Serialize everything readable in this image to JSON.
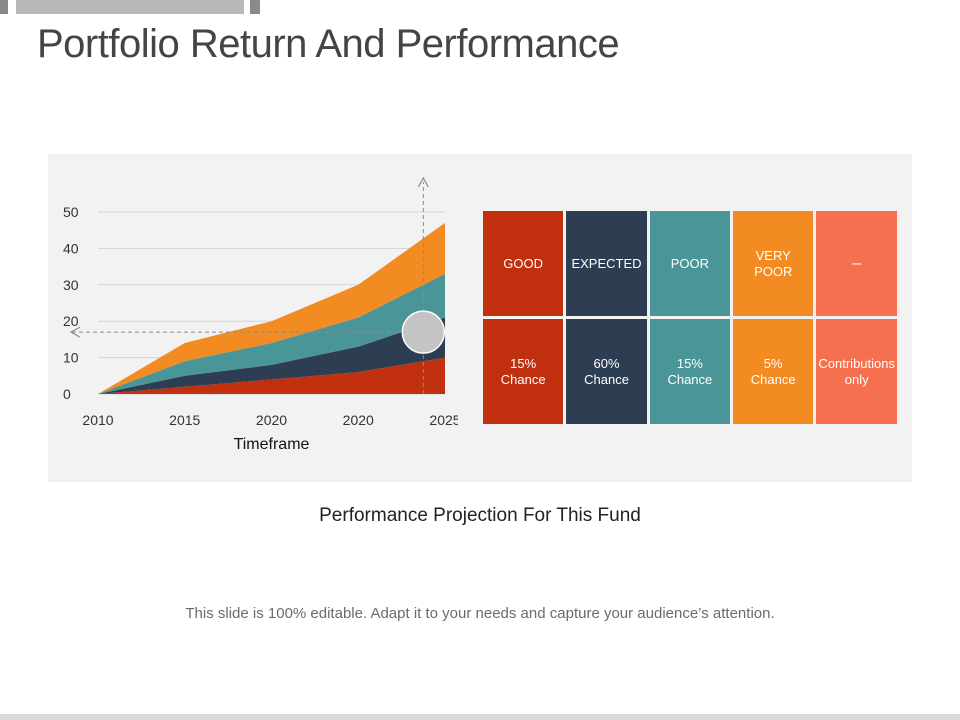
{
  "slide": {
    "title": "Portfolio Return And Performance",
    "subtitle": "Performance Projection For This Fund",
    "footer": "This slide is 100% editable. Adapt it to your needs and capture your audience’s attention."
  },
  "chart_data": {
    "type": "area",
    "stacked": true,
    "categories": [
      "2010",
      "2015",
      "2020",
      "2020",
      "2025"
    ],
    "xlabel": "Timeframe",
    "ylabel": "",
    "ylim": [
      0,
      50
    ],
    "yticks": [
      0,
      10,
      20,
      30,
      40,
      50
    ],
    "grid": true,
    "series": [
      {
        "values": [
          0,
          2,
          4,
          6,
          10
        ],
        "color": "#c0300f"
      },
      {
        "values": [
          0,
          3,
          4,
          7,
          11
        ],
        "color": "#2e3e52"
      },
      {
        "values": [
          0,
          4,
          6,
          8,
          12
        ],
        "color": "#4a9598"
      },
      {
        "values": [
          0,
          5,
          6,
          9,
          14
        ],
        "color": "#f28b21"
      }
    ],
    "marker": {
      "description": "crosshair",
      "x_index": 3.75,
      "y": 17
    }
  },
  "scenarios": [
    {
      "label": "GOOD",
      "chance": "15%\nChance",
      "color": "#c0300f"
    },
    {
      "label": "EXPECTED",
      "chance": "60%\nChance",
      "color": "#2e3e52"
    },
    {
      "label": "POOR",
      "chance": "15%\nChance",
      "color": "#4a9598"
    },
    {
      "label": "VERY\nPOOR",
      "chance": "5%\nChance",
      "color": "#f28b21"
    },
    {
      "label": "–",
      "chance": "Contributions\nonly",
      "color": "#f4704e"
    }
  ]
}
